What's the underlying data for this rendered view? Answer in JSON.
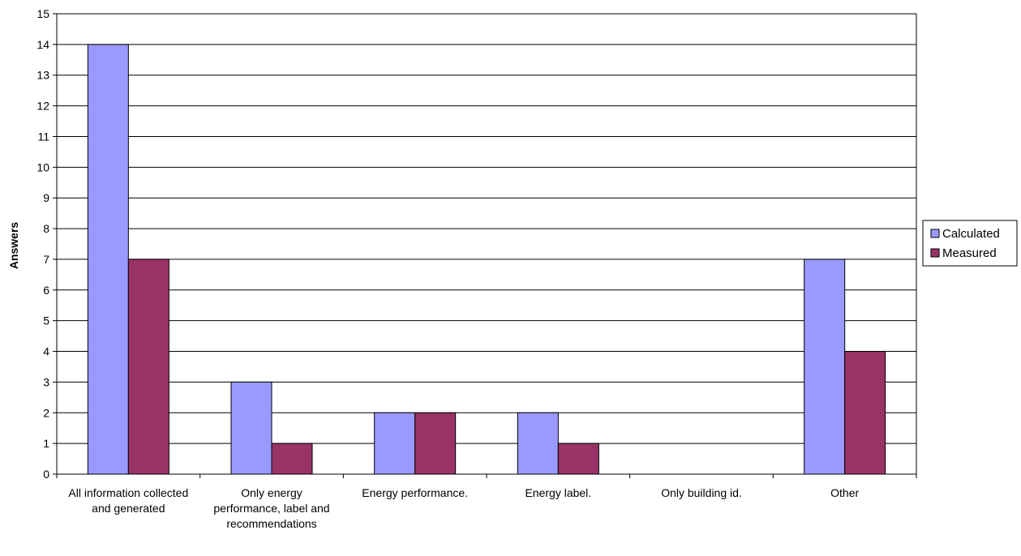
{
  "chart_data": {
    "type": "bar",
    "title": "",
    "xlabel": "",
    "ylabel": "Answers",
    "ylim": [
      0,
      15
    ],
    "yticks": [
      0,
      1,
      2,
      3,
      4,
      5,
      6,
      7,
      8,
      9,
      10,
      11,
      12,
      13,
      14,
      15
    ],
    "grid": true,
    "legend_position": "right",
    "categories": [
      "All information collected and generated",
      "Only energy performance, label and recommendations",
      "Energy performance.",
      "Energy label.",
      "Only building id.",
      "Other"
    ],
    "series": [
      {
        "name": "Calculated",
        "values": [
          14,
          3,
          2,
          2,
          0,
          7
        ],
        "color": "#9999ff"
      },
      {
        "name": "Measured",
        "values": [
          7,
          1,
          2,
          1,
          0,
          4
        ],
        "color": "#993366"
      }
    ]
  }
}
